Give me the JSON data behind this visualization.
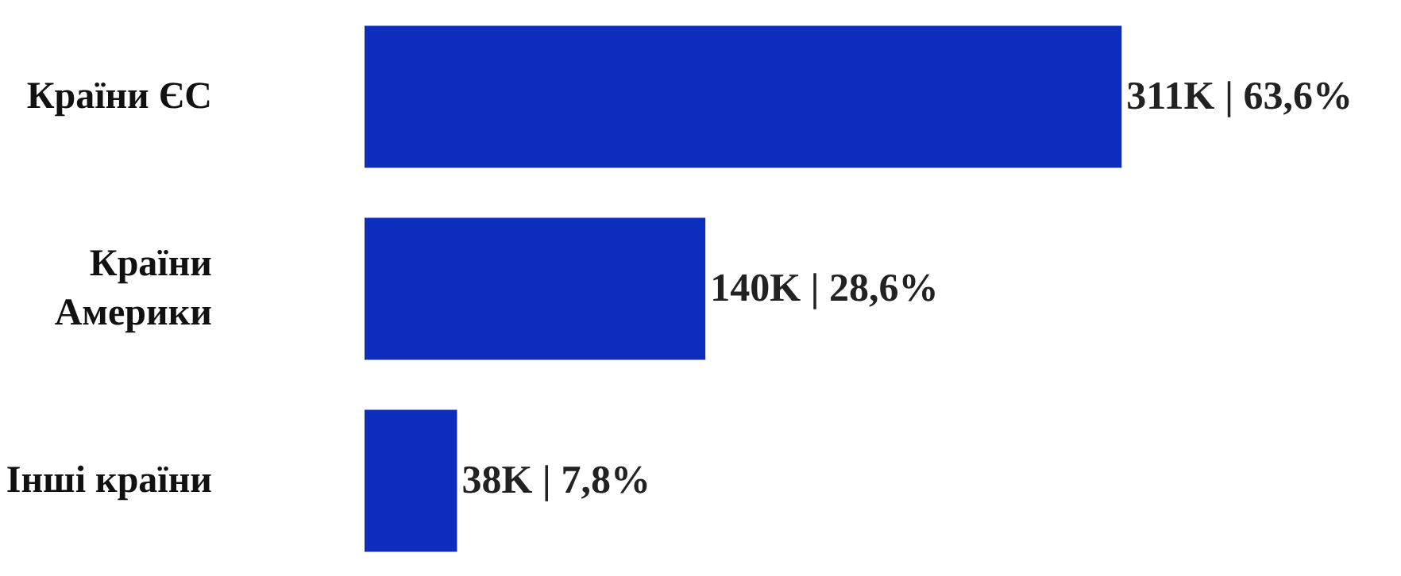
{
  "chart_data": {
    "type": "bar",
    "orientation": "horizontal",
    "categories": [
      "Країни ЄС",
      "Країни Америки",
      "Інші країни"
    ],
    "values": [
      311000,
      140000,
      38000
    ],
    "color": "#0d2dbd",
    "value_labels": [
      "311K | 63,6%",
      "140K | 28,6%",
      "38K | 7,8%"
    ],
    "tick_labels": false
  }
}
